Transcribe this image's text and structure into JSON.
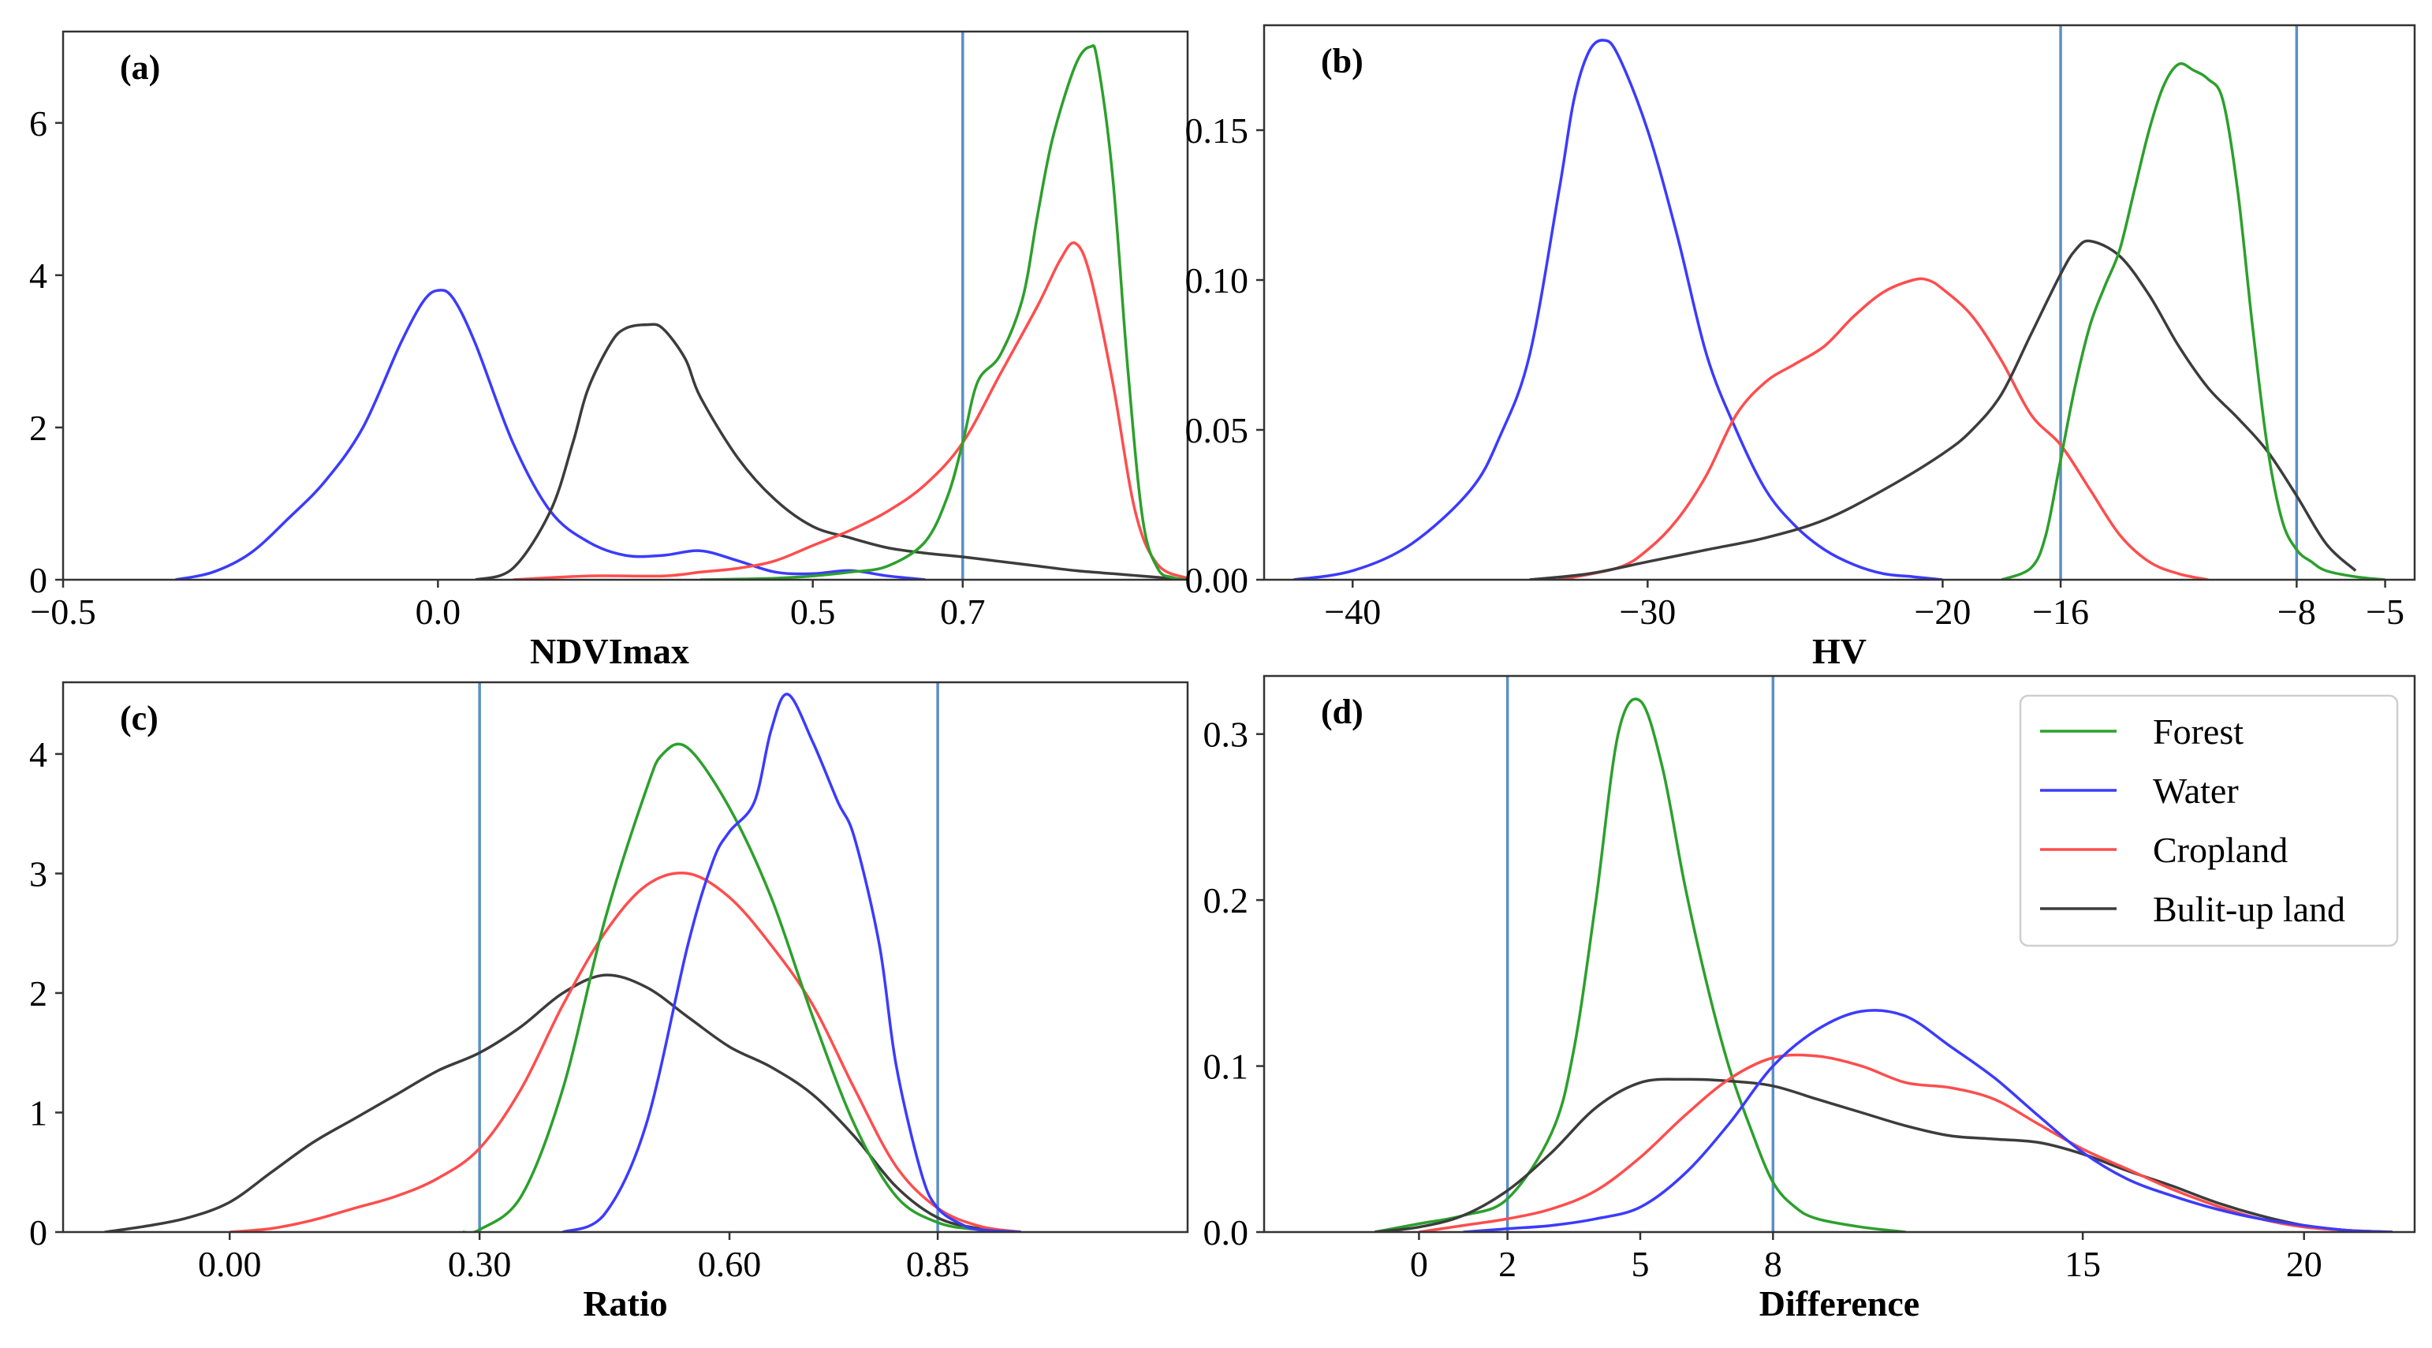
{
  "colors": {
    "Forest": "#2ca02c",
    "Water": "#3b3bff",
    "Cropland": "#ff4d4d",
    "Built-up": "#3c3c3c",
    "vline": "#5b8fc7"
  },
  "legend": {
    "items": [
      {
        "name": "Forest",
        "label": "Forest",
        "color": "#2ca02c"
      },
      {
        "name": "Water",
        "label": "Water",
        "color": "#3b3bff"
      },
      {
        "name": "Cropland",
        "label": "Cropland",
        "color": "#ff4d4d"
      },
      {
        "name": "Built-up",
        "label": "Bulit-up land",
        "color": "#3c3c3c"
      }
    ]
  },
  "chart_data": [
    {
      "id": "a",
      "type": "line",
      "panel_label": "(a)",
      "xlabel": "NDVImax",
      "ylabel": "",
      "xlim": [
        -0.5,
        1.0
      ],
      "ylim": [
        0,
        7.2
      ],
      "xticks": [
        -0.5,
        0.0,
        0.5,
        0.7
      ],
      "xtick_labels": [
        "−0.5",
        "0.0",
        "0.5",
        "0.7"
      ],
      "yticks": [
        0,
        2,
        4,
        6
      ],
      "ytick_labels": [
        "0",
        "2",
        "4",
        "6"
      ],
      "vlines": [
        0.7
      ],
      "series": [
        {
          "name": "Water",
          "x": [
            -0.35,
            -0.3,
            -0.25,
            -0.2,
            -0.15,
            -0.1,
            -0.05,
            -0.02,
            0.0,
            0.02,
            0.05,
            0.1,
            0.15,
            0.2,
            0.25,
            0.3,
            0.35,
            0.4,
            0.45,
            0.5,
            0.55,
            0.6,
            0.65
          ],
          "y": [
            0,
            0.1,
            0.35,
            0.8,
            1.3,
            2.0,
            3.1,
            3.65,
            3.8,
            3.7,
            3.1,
            1.8,
            0.9,
            0.5,
            0.32,
            0.32,
            0.38,
            0.25,
            0.1,
            0.08,
            0.12,
            0.05,
            0
          ]
        },
        {
          "name": "Built-up",
          "x": [
            0.05,
            0.1,
            0.15,
            0.18,
            0.2,
            0.23,
            0.25,
            0.28,
            0.3,
            0.33,
            0.35,
            0.4,
            0.45,
            0.5,
            0.55,
            0.6,
            0.65,
            0.7,
            0.75,
            0.8,
            0.85,
            0.9,
            0.95,
            1.0
          ],
          "y": [
            0,
            0.15,
            0.9,
            1.8,
            2.5,
            3.1,
            3.3,
            3.35,
            3.3,
            2.9,
            2.4,
            1.6,
            1.05,
            0.7,
            0.55,
            0.42,
            0.35,
            0.3,
            0.24,
            0.18,
            0.12,
            0.08,
            0.04,
            0
          ]
        },
        {
          "name": "Cropland",
          "x": [
            0.1,
            0.2,
            0.3,
            0.35,
            0.4,
            0.45,
            0.5,
            0.55,
            0.6,
            0.65,
            0.7,
            0.75,
            0.8,
            0.83,
            0.85,
            0.87,
            0.9,
            0.93,
            0.96,
            1.0
          ],
          "y": [
            0,
            0.05,
            0.05,
            0.1,
            0.15,
            0.25,
            0.45,
            0.65,
            0.9,
            1.25,
            1.8,
            2.7,
            3.6,
            4.2,
            4.42,
            4.0,
            2.6,
            0.9,
            0.2,
            0.02
          ]
        },
        {
          "name": "Forest",
          "x": [
            0.35,
            0.45,
            0.5,
            0.55,
            0.6,
            0.65,
            0.68,
            0.7,
            0.72,
            0.75,
            0.78,
            0.8,
            0.82,
            0.85,
            0.87,
            0.88,
            0.9,
            0.92,
            0.94,
            0.96,
            0.98,
            1.0
          ],
          "y": [
            0,
            0.02,
            0.05,
            0.1,
            0.18,
            0.5,
            1.1,
            1.8,
            2.6,
            2.95,
            3.7,
            4.8,
            5.8,
            6.75,
            7.0,
            6.8,
            5.3,
            2.8,
            0.8,
            0.15,
            0.03,
            0
          ]
        }
      ]
    },
    {
      "id": "b",
      "type": "line",
      "panel_label": "(b)",
      "xlabel": "HV",
      "ylabel": "",
      "xlim": [
        -43,
        -4
      ],
      "ylim": [
        0,
        0.185
      ],
      "xticks": [
        -40,
        -30,
        -20,
        -16,
        -8,
        -5
      ],
      "xtick_labels": [
        "−40",
        "−30",
        "−20",
        "−16",
        "−8",
        "−5"
      ],
      "yticks": [
        0,
        0.05,
        0.1,
        0.15
      ],
      "ytick_labels": [
        "0.00",
        "0.05",
        "0.10",
        "0.15"
      ],
      "vlines": [
        -16,
        -8
      ],
      "series": [
        {
          "name": "Water",
          "x": [
            -42,
            -40,
            -38,
            -36,
            -35,
            -34,
            -33,
            -32.5,
            -32,
            -31.5,
            -31,
            -30,
            -29,
            -28,
            -27,
            -26,
            -25,
            -24,
            -23,
            -22,
            -21,
            -20
          ],
          "y": [
            0,
            0.003,
            0.012,
            0.03,
            0.048,
            0.075,
            0.13,
            0.16,
            0.176,
            0.18,
            0.175,
            0.15,
            0.115,
            0.075,
            0.05,
            0.03,
            0.018,
            0.01,
            0.005,
            0.002,
            0.001,
            0
          ]
        },
        {
          "name": "Cropland",
          "x": [
            -33,
            -31,
            -30,
            -29,
            -28,
            -27,
            -26,
            -25,
            -24,
            -23,
            -22,
            -21,
            -20.5,
            -20,
            -19,
            -18,
            -17,
            -16,
            -15,
            -14,
            -13,
            -12,
            -11
          ],
          "y": [
            0,
            0.004,
            0.01,
            0.02,
            0.035,
            0.055,
            0.066,
            0.072,
            0.078,
            0.088,
            0.096,
            0.1,
            0.1,
            0.097,
            0.088,
            0.073,
            0.055,
            0.045,
            0.03,
            0.015,
            0.006,
            0.002,
            0
          ]
        },
        {
          "name": "Built-up",
          "x": [
            -34,
            -32,
            -30,
            -28,
            -26,
            -24,
            -22,
            -20,
            -19,
            -18,
            -17,
            -16,
            -15.5,
            -15,
            -14,
            -13,
            -12,
            -11,
            -10,
            -9,
            -8,
            -7,
            -6
          ],
          "y": [
            0,
            0.002,
            0.006,
            0.01,
            0.014,
            0.02,
            0.03,
            0.042,
            0.05,
            0.062,
            0.082,
            0.102,
            0.11,
            0.113,
            0.108,
            0.095,
            0.078,
            0.064,
            0.054,
            0.043,
            0.028,
            0.012,
            0.003
          ]
        },
        {
          "name": "Forest",
          "x": [
            -18,
            -17,
            -16.5,
            -16,
            -15.5,
            -15,
            -14.5,
            -14,
            -13.5,
            -13,
            -12.5,
            -12,
            -11.5,
            -11,
            -10.5,
            -10,
            -9.5,
            -9,
            -8.5,
            -8,
            -7.5,
            -7,
            -6,
            -5
          ],
          "y": [
            0,
            0.004,
            0.015,
            0.04,
            0.065,
            0.085,
            0.098,
            0.11,
            0.13,
            0.15,
            0.165,
            0.172,
            0.17,
            0.167,
            0.16,
            0.13,
            0.085,
            0.045,
            0.02,
            0.01,
            0.006,
            0.003,
            0.001,
            0
          ]
        }
      ]
    },
    {
      "id": "c",
      "type": "line",
      "panel_label": "(c)",
      "xlabel": "Ratio",
      "ylabel": "",
      "xlim": [
        -0.2,
        1.15
      ],
      "ylim": [
        0,
        4.6
      ],
      "xticks": [
        0.0,
        0.3,
        0.6,
        0.85
      ],
      "xtick_labels": [
        "0.00",
        "0.30",
        "0.60",
        "0.85"
      ],
      "yticks": [
        0,
        1,
        2,
        3,
        4
      ],
      "ytick_labels": [
        "0",
        "1",
        "2",
        "3",
        "4"
      ],
      "vlines": [
        0.3,
        0.85
      ],
      "series": [
        {
          "name": "Built-up",
          "x": [
            -0.15,
            -0.1,
            -0.05,
            0.0,
            0.05,
            0.1,
            0.15,
            0.2,
            0.25,
            0.3,
            0.35,
            0.4,
            0.45,
            0.5,
            0.55,
            0.6,
            0.65,
            0.7,
            0.75,
            0.8,
            0.85,
            0.9,
            0.95
          ],
          "y": [
            0,
            0.05,
            0.12,
            0.25,
            0.5,
            0.75,
            0.95,
            1.15,
            1.35,
            1.5,
            1.72,
            2.0,
            2.15,
            2.05,
            1.8,
            1.55,
            1.38,
            1.15,
            0.8,
            0.38,
            0.12,
            0.03,
            0
          ]
        },
        {
          "name": "Cropland",
          "x": [
            0.0,
            0.05,
            0.1,
            0.15,
            0.2,
            0.25,
            0.3,
            0.35,
            0.4,
            0.45,
            0.5,
            0.55,
            0.6,
            0.65,
            0.7,
            0.75,
            0.8,
            0.85,
            0.9,
            0.95
          ],
          "y": [
            0,
            0.03,
            0.1,
            0.2,
            0.3,
            0.45,
            0.7,
            1.2,
            1.9,
            2.5,
            2.9,
            3.0,
            2.8,
            2.4,
            1.9,
            1.2,
            0.55,
            0.2,
            0.05,
            0
          ]
        },
        {
          "name": "Forest",
          "x": [
            0.28,
            0.3,
            0.35,
            0.4,
            0.45,
            0.5,
            0.52,
            0.55,
            0.6,
            0.65,
            0.7,
            0.75,
            0.8,
            0.85,
            0.9,
            0.95
          ],
          "y": [
            0,
            0.02,
            0.3,
            1.2,
            2.6,
            3.7,
            4.0,
            4.05,
            3.55,
            2.8,
            1.8,
            0.9,
            0.3,
            0.08,
            0.02,
            0
          ]
        },
        {
          "name": "Water",
          "x": [
            0.4,
            0.45,
            0.5,
            0.55,
            0.58,
            0.6,
            0.63,
            0.65,
            0.67,
            0.7,
            0.73,
            0.75,
            0.78,
            0.8,
            0.83,
            0.85,
            0.88,
            0.9,
            0.95
          ],
          "y": [
            0,
            0.15,
            0.9,
            2.4,
            3.1,
            3.35,
            3.6,
            4.2,
            4.5,
            4.1,
            3.6,
            3.3,
            2.4,
            1.4,
            0.5,
            0.2,
            0.06,
            0.02,
            0
          ]
        }
      ]
    },
    {
      "id": "d",
      "type": "line",
      "panel_label": "(d)",
      "xlabel": "Difference",
      "ylabel": "",
      "xlim": [
        -3.5,
        22.5
      ],
      "ylim": [
        0,
        0.335
      ],
      "xticks": [
        0,
        2,
        5,
        8,
        15,
        20
      ],
      "xtick_labels": [
        "0",
        "2",
        "5",
        "8",
        "15",
        "20"
      ],
      "yticks": [
        0,
        0.1,
        0.2,
        0.3
      ],
      "ytick_labels": [
        "0.0",
        "0.1",
        "0.2",
        "0.3"
      ],
      "vlines": [
        2,
        8
      ],
      "series": [
        {
          "name": "Forest",
          "x": [
            -1,
            0,
            1,
            2,
            3,
            3.5,
            4,
            4.5,
            5,
            5.5,
            6,
            6.5,
            7,
            7.5,
            8,
            8.5,
            9,
            10,
            11
          ],
          "y": [
            0,
            0.005,
            0.01,
            0.02,
            0.06,
            0.11,
            0.2,
            0.3,
            0.32,
            0.28,
            0.21,
            0.15,
            0.1,
            0.062,
            0.03,
            0.015,
            0.008,
            0.003,
            0
          ]
        },
        {
          "name": "Built-up",
          "x": [
            -1,
            0,
            1,
            2,
            3,
            4,
            5,
            6,
            7,
            8,
            9,
            10,
            11,
            12,
            13,
            14,
            15,
            16,
            17,
            18,
            19,
            20,
            21,
            22
          ],
          "y": [
            0,
            0.003,
            0.01,
            0.025,
            0.048,
            0.075,
            0.09,
            0.092,
            0.091,
            0.088,
            0.08,
            0.072,
            0.064,
            0.058,
            0.056,
            0.054,
            0.047,
            0.037,
            0.028,
            0.018,
            0.01,
            0.004,
            0.001,
            0
          ]
        },
        {
          "name": "Cropland",
          "x": [
            0,
            1,
            2,
            3,
            4,
            5,
            6,
            7,
            8,
            9,
            10,
            11,
            12,
            13,
            14,
            15,
            16,
            17,
            18,
            19,
            20,
            21,
            22
          ],
          "y": [
            0,
            0.004,
            0.008,
            0.014,
            0.025,
            0.045,
            0.07,
            0.092,
            0.105,
            0.106,
            0.1,
            0.09,
            0.087,
            0.08,
            0.065,
            0.05,
            0.038,
            0.026,
            0.016,
            0.008,
            0.003,
            0.001,
            0
          ]
        },
        {
          "name": "Water",
          "x": [
            1,
            2,
            3,
            4,
            5,
            6,
            7,
            8,
            9,
            10,
            11,
            12,
            13,
            14,
            15,
            16,
            17,
            18,
            19,
            20,
            21,
            22
          ],
          "y": [
            0,
            0.002,
            0.004,
            0.008,
            0.015,
            0.035,
            0.065,
            0.1,
            0.122,
            0.133,
            0.13,
            0.112,
            0.093,
            0.07,
            0.048,
            0.032,
            0.022,
            0.014,
            0.008,
            0.004,
            0.001,
            0
          ]
        }
      ]
    }
  ]
}
